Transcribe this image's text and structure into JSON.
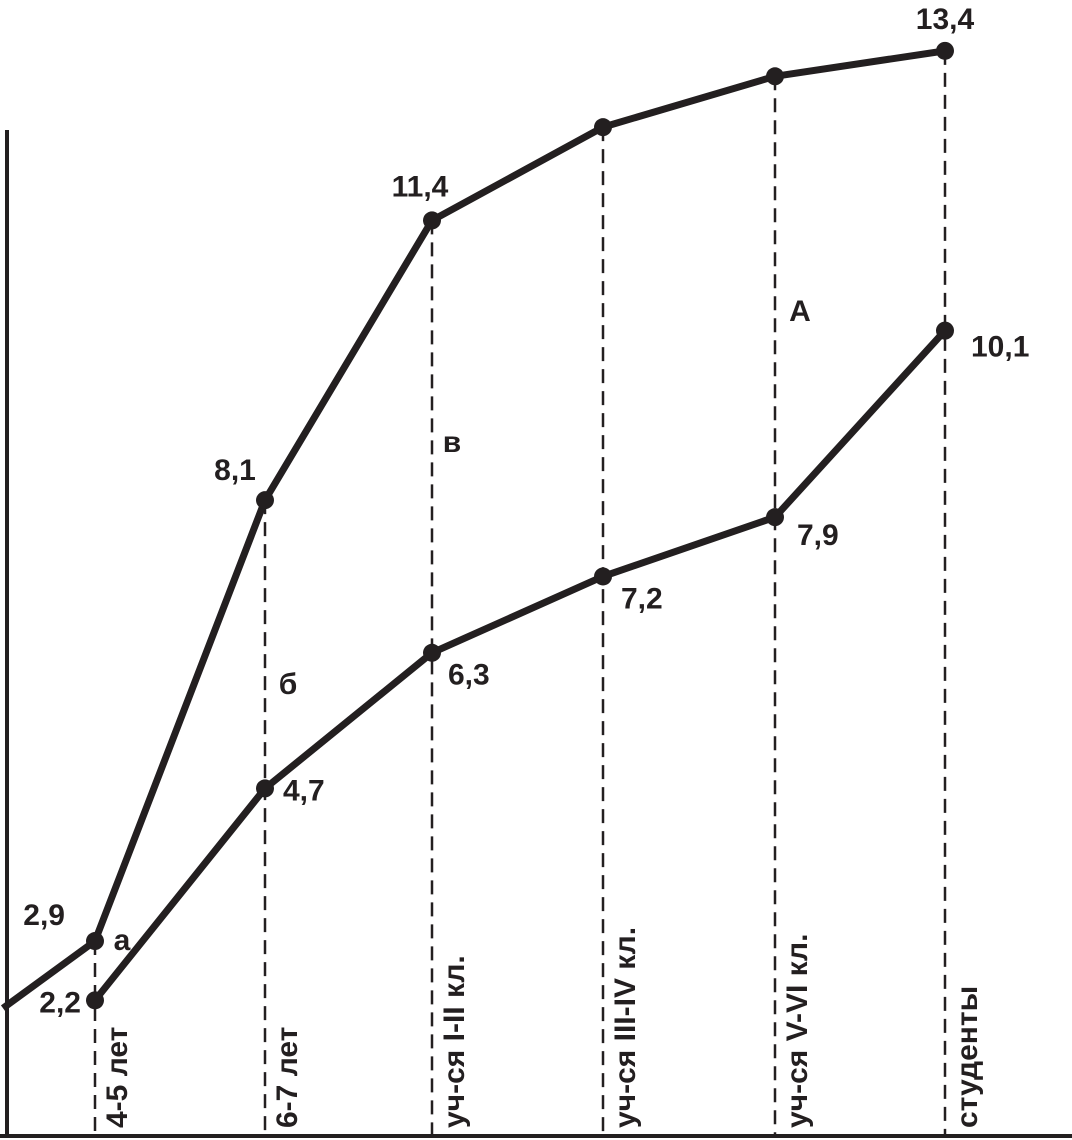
{
  "chart_data": {
    "type": "line",
    "categories": [
      "4-5 лет",
      "6-7 лет",
      "уч-ся I-II кл.",
      "уч-ся III-IV кл.",
      "уч-ся V-VI кл.",
      "студенты"
    ],
    "series": [
      {
        "color": "#231f20",
        "values": [
          2.9,
          8.1,
          11.4,
          12.5,
          13.1,
          13.4
        ],
        "value_labels": [
          "2,9",
          "8,1",
          "11,4",
          null,
          null,
          "13,4"
        ]
      },
      {
        "color": "#231f20",
        "values": [
          2.2,
          4.7,
          6.3,
          7.2,
          7.9,
          10.1
        ],
        "value_labels": [
          "2,2",
          "4,7",
          "6,3",
          "7,2",
          "7,9",
          "10,1"
        ]
      }
    ],
    "annotations": [
      "А",
      "а",
      "б",
      "в"
    ],
    "ylim": [
      0.6,
      14
    ]
  }
}
